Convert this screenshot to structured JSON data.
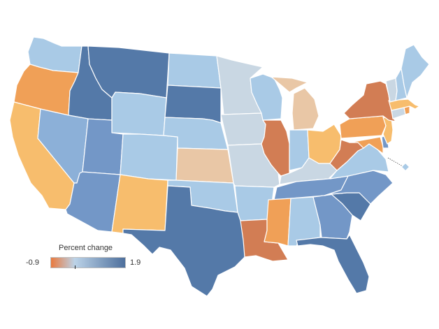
{
  "legend": {
    "title": "Percent change",
    "min_label": "-0.9",
    "max_label": "1.9",
    "min": -0.9,
    "max": 1.9,
    "marker_value": 0,
    "gradient": [
      "#e97a3f",
      "#bcd3e8",
      "#4d6f9c"
    ]
  },
  "colors": {
    "dark_orange": "#d27d54",
    "orange": "#f0a057",
    "light_orange": "#f7bd6d",
    "tan": "#e9c7a6",
    "gray_blue": "#c9d7e3",
    "light_blue": "#a9cae6",
    "medium_blue": "#8cb0d8",
    "blue": "#7397c7",
    "dark_blue": "#5479a8"
  },
  "states": [
    {
      "code": "WA",
      "color": "light_blue"
    },
    {
      "code": "OR",
      "color": "orange"
    },
    {
      "code": "CA",
      "color": "light_orange"
    },
    {
      "code": "ID",
      "color": "dark_blue"
    },
    {
      "code": "NV",
      "color": "medium_blue"
    },
    {
      "code": "MT",
      "color": "dark_blue"
    },
    {
      "code": "WY",
      "color": "light_blue"
    },
    {
      "code": "UT",
      "color": "blue"
    },
    {
      "code": "AZ",
      "color": "blue"
    },
    {
      "code": "CO",
      "color": "light_blue"
    },
    {
      "code": "NM",
      "color": "light_orange"
    },
    {
      "code": "ND",
      "color": "light_blue"
    },
    {
      "code": "SD",
      "color": "dark_blue"
    },
    {
      "code": "NE",
      "color": "light_blue"
    },
    {
      "code": "KS",
      "color": "tan"
    },
    {
      "code": "OK",
      "color": "light_blue"
    },
    {
      "code": "TX",
      "color": "dark_blue"
    },
    {
      "code": "MN",
      "color": "gray_blue"
    },
    {
      "code": "IA",
      "color": "gray_blue"
    },
    {
      "code": "MO",
      "color": "gray_blue"
    },
    {
      "code": "AR",
      "color": "light_blue"
    },
    {
      "code": "LA",
      "color": "dark_orange"
    },
    {
      "code": "WI",
      "color": "light_blue"
    },
    {
      "code": "IL",
      "color": "dark_orange"
    },
    {
      "code": "MI",
      "color": "tan"
    },
    {
      "code": "IN",
      "color": "light_blue"
    },
    {
      "code": "OH",
      "color": "light_orange"
    },
    {
      "code": "KY",
      "color": "gray_blue"
    },
    {
      "code": "TN",
      "color": "blue"
    },
    {
      "code": "MS",
      "color": "orange"
    },
    {
      "code": "AL",
      "color": "light_blue"
    },
    {
      "code": "GA",
      "color": "blue"
    },
    {
      "code": "FL",
      "color": "dark_blue"
    },
    {
      "code": "SC",
      "color": "dark_blue"
    },
    {
      "code": "NC",
      "color": "blue"
    },
    {
      "code": "VA",
      "color": "light_blue"
    },
    {
      "code": "WV",
      "color": "dark_orange"
    },
    {
      "code": "PA",
      "color": "orange"
    },
    {
      "code": "NY",
      "color": "dark_orange"
    },
    {
      "code": "VT",
      "color": "gray_blue"
    },
    {
      "code": "NH",
      "color": "light_blue"
    },
    {
      "code": "ME",
      "color": "light_blue"
    },
    {
      "code": "MA",
      "color": "light_orange"
    },
    {
      "code": "RI",
      "color": "orange"
    },
    {
      "code": "CT",
      "color": "gray_blue"
    },
    {
      "code": "NJ",
      "color": "light_orange"
    },
    {
      "code": "DE",
      "color": "blue"
    },
    {
      "code": "MD",
      "color": "orange"
    },
    {
      "code": "DC",
      "color": "light_blue"
    }
  ]
}
